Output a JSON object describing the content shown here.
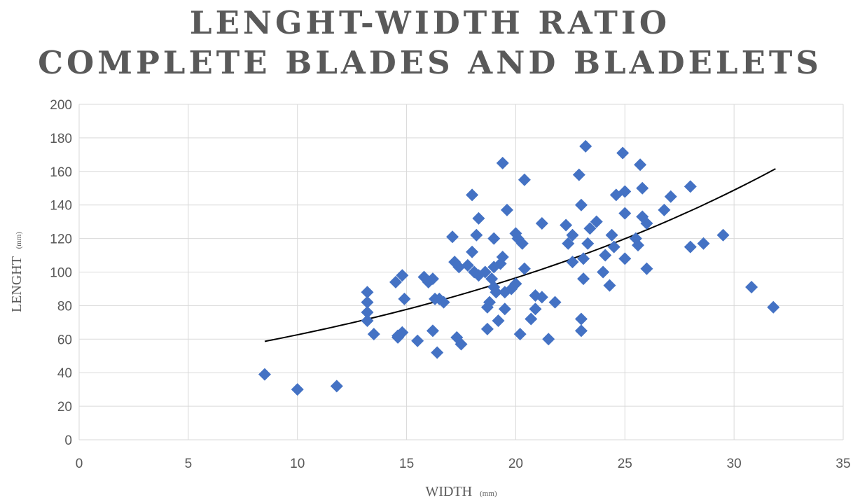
{
  "chart_data": {
    "type": "scatter",
    "title": [
      "LENGHT-WIDTH RATIO",
      "COMPLETE BLADES AND BLADELETS"
    ],
    "xlabel": "WIDTH",
    "xlabel_unit": "(mm)",
    "ylabel": "LENGHT",
    "ylabel_unit": "(mm)",
    "xlim": [
      0,
      35
    ],
    "ylim": [
      0,
      200
    ],
    "xticks": [
      "0",
      "5",
      "10",
      "15",
      "20",
      "25",
      "30",
      "35"
    ],
    "yticks": [
      "0",
      "20",
      "40",
      "60",
      "80",
      "100",
      "120",
      "140",
      "160",
      "180",
      "200"
    ],
    "grid": true,
    "legend": "none",
    "marker_color": "#4472C4",
    "trendline": {
      "type": "exponential",
      "a": 40.6,
      "b": 0.0433,
      "x_range": [
        8.5,
        31.9
      ],
      "color": "#000000"
    },
    "series": [
      {
        "points": [
          [
            8.5,
            39
          ],
          [
            10,
            30
          ],
          [
            11.8,
            32
          ],
          [
            13.2,
            88
          ],
          [
            13.2,
            82
          ],
          [
            13.2,
            76
          ],
          [
            13.2,
            71
          ],
          [
            13.5,
            63
          ],
          [
            14.5,
            94
          ],
          [
            14.8,
            98
          ],
          [
            14.9,
            84
          ],
          [
            14.6,
            61
          ],
          [
            14.8,
            64
          ],
          [
            14.6,
            62
          ],
          [
            15.5,
            59
          ],
          [
            15.8,
            97
          ],
          [
            16.0,
            94
          ],
          [
            16.2,
            96
          ],
          [
            16.3,
            84
          ],
          [
            16.5,
            84
          ],
          [
            16.7,
            82
          ],
          [
            16.2,
            65
          ],
          [
            16.4,
            52
          ],
          [
            17.1,
            121
          ],
          [
            17.2,
            106
          ],
          [
            17.4,
            103
          ],
          [
            17.3,
            61
          ],
          [
            17.5,
            57
          ],
          [
            17.8,
            104
          ],
          [
            18.0,
            146
          ],
          [
            18.0,
            112
          ],
          [
            18.1,
            100
          ],
          [
            18.2,
            122
          ],
          [
            18.3,
            132
          ],
          [
            18.3,
            98
          ],
          [
            18.6,
            100
          ],
          [
            18.7,
            79
          ],
          [
            18.7,
            66
          ],
          [
            18.8,
            82
          ],
          [
            18.9,
            96
          ],
          [
            19.0,
            103
          ],
          [
            19.0,
            91
          ],
          [
            19.0,
            120
          ],
          [
            19.1,
            88
          ],
          [
            19.2,
            71
          ],
          [
            19.3,
            105
          ],
          [
            19.4,
            165
          ],
          [
            19.4,
            109
          ],
          [
            19.5,
            88
          ],
          [
            19.5,
            78
          ],
          [
            19.6,
            137
          ],
          [
            19.8,
            90
          ],
          [
            20.0,
            123
          ],
          [
            20.0,
            93
          ],
          [
            20.1,
            120
          ],
          [
            20.2,
            63
          ],
          [
            20.3,
            117
          ],
          [
            20.4,
            155
          ],
          [
            20.4,
            102
          ],
          [
            20.7,
            72
          ],
          [
            20.9,
            86
          ],
          [
            20.9,
            78
          ],
          [
            21.2,
            129
          ],
          [
            21.2,
            85
          ],
          [
            21.5,
            60
          ],
          [
            21.8,
            82
          ],
          [
            22.3,
            128
          ],
          [
            22.4,
            117
          ],
          [
            22.6,
            122
          ],
          [
            22.6,
            106
          ],
          [
            22.9,
            158
          ],
          [
            23.0,
            140
          ],
          [
            23.0,
            72
          ],
          [
            23.0,
            65
          ],
          [
            23.1,
            96
          ],
          [
            23.1,
            108
          ],
          [
            23.2,
            175
          ],
          [
            23.3,
            117
          ],
          [
            23.4,
            126
          ],
          [
            23.7,
            130
          ],
          [
            24.0,
            100
          ],
          [
            24.1,
            110
          ],
          [
            24.3,
            92
          ],
          [
            24.4,
            122
          ],
          [
            24.5,
            115
          ],
          [
            24.6,
            146
          ],
          [
            24.9,
            171
          ],
          [
            25.0,
            148
          ],
          [
            25.0,
            135
          ],
          [
            25.0,
            108
          ],
          [
            25.5,
            120
          ],
          [
            25.6,
            116
          ],
          [
            25.7,
            164
          ],
          [
            25.8,
            150
          ],
          [
            25.8,
            133
          ],
          [
            26.0,
            129
          ],
          [
            26.0,
            102
          ],
          [
            26.8,
            137
          ],
          [
            27.1,
            145
          ],
          [
            28.0,
            151
          ],
          [
            28.0,
            115
          ],
          [
            28.6,
            117
          ],
          [
            29.5,
            122
          ],
          [
            30.8,
            91
          ],
          [
            31.8,
            79
          ]
        ]
      }
    ]
  }
}
